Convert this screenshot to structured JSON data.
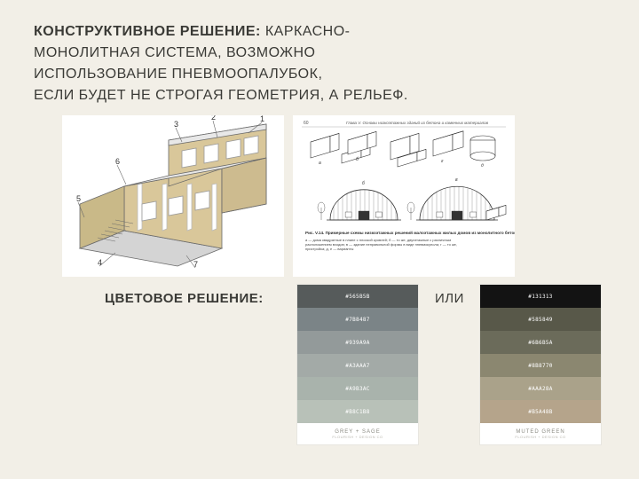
{
  "heading": {
    "bold": "КОНСТРУКТИВНОЕ РЕШЕНИЕ:",
    "rest": " КАРКАСНО-\nМОНОЛИТНАЯ СИСТЕМА, ВОЗМОЖНО\n ИСПОЛЬЗОВАНИЕ ПНЕВМООПАЛУБОК,\nЕСЛИ БУДЕТ НЕ СТРОГАЯ ГЕОМЕТРИЯ, А РЕЛЬЕФ."
  },
  "color_section": {
    "title": "ЦВЕТОВОЕ РЕШЕНИЕ:",
    "or": "ИЛИ"
  },
  "figure_left": {
    "type": "axonometric-building-diagram",
    "wall_color": "#d9c79a",
    "floor_color": "#d4d4d4",
    "frame_color": "#ffffff",
    "line_color": "#6a6a6a",
    "callouts": [
      "1",
      "2",
      "3",
      "4",
      "5",
      "6",
      "7"
    ]
  },
  "figure_right": {
    "type": "technical-section-diagram",
    "line_color": "#333333",
    "background": "#ffffff",
    "page_number": "60",
    "chapter": "Глава V. Основы низкоэтажных зданий из бетона и каменных материалов",
    "caption_title": "Рис. V.14. Примерные схемы низкоэтажных решений малоэтажных жилых домов из монолитного бетона",
    "legend": "а — дома квадратные в плане с плоской кровлей; б — то же, двухэтажные с различным расположением входов; в — здание неправильной формы в виде пневмокупола; г — то же, пристройка; д, е — варианты",
    "block_labels": [
      "a",
      "б",
      "в",
      "г",
      "д",
      "е",
      "ж",
      "и",
      "к"
    ]
  },
  "palette_a": {
    "name": "GREY + SAGE",
    "sub": "FLOURISH + DESIGN CO",
    "swatches": [
      {
        "hex": "#565B5B",
        "label": "#565B5B"
      },
      {
        "hex": "#7B8487",
        "label": "#7B8487"
      },
      {
        "hex": "#939A9A",
        "label": "#939A9A"
      },
      {
        "hex": "#A3AAA7",
        "label": "#A3AAA7"
      },
      {
        "hex": "#A9B3AC",
        "label": "#A9B3AC"
      },
      {
        "hex": "#B8C1B8",
        "label": "#B8C1B8"
      }
    ]
  },
  "palette_b": {
    "name": "MUTED GREEN",
    "sub": "FLOURISH + DESIGN CO",
    "swatches": [
      {
        "hex": "#131313",
        "label": "#131313"
      },
      {
        "hex": "#585849",
        "label": "#585849"
      },
      {
        "hex": "#6B6B5A",
        "label": "#6B6B5A"
      },
      {
        "hex": "#8B8770",
        "label": "#8B8770"
      },
      {
        "hex": "#AAA28A",
        "label": "#AAA28A"
      },
      {
        "hex": "#B5A48B",
        "label": "#B5A48B"
      }
    ]
  }
}
